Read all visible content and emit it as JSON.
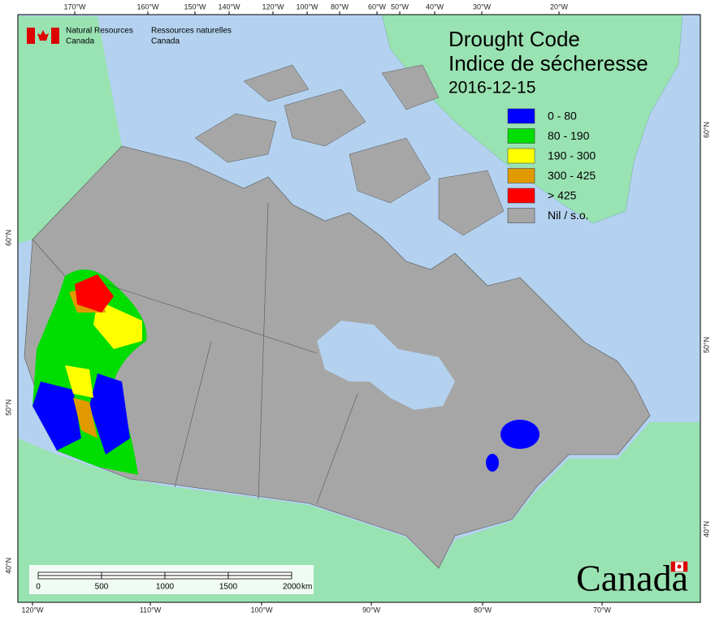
{
  "agency": {
    "en_line1": "Natural Resources",
    "en_line2": "Canada",
    "fr_line1": "Ressources naturelles",
    "fr_line2": "Canada"
  },
  "title": {
    "en": "Drought Code",
    "fr": "Indice de sécheresse",
    "date": "2016-12-15"
  },
  "legend": [
    {
      "label": "0 - 80",
      "color": "#0000ff"
    },
    {
      "label": "80 - 190",
      "color": "#00dd00"
    },
    {
      "label": "190 - 300",
      "color": "#ffff00"
    },
    {
      "label": "300 - 425",
      "color": "#e09a00"
    },
    {
      "label": "> 425",
      "color": "#ff0000"
    },
    {
      "label": "Nil / s.o.",
      "color": "#a6a6a6"
    }
  ],
  "graticule": {
    "top": [
      "170°W",
      "160°W",
      "150°W",
      "140°W",
      "120°W",
      "100°W",
      "80°W",
      "60°W",
      "50°W",
      "40°W",
      "30°W",
      "20°W"
    ],
    "bottom": [
      "120°W",
      "110°W",
      "100°W",
      "90°W",
      "80°W",
      "70°W"
    ],
    "left": [
      "60°N",
      "50°N",
      "40°N"
    ],
    "right": [
      "60°N",
      "50°N",
      "40°N"
    ]
  },
  "scale_bar": {
    "labels": [
      "0",
      "500",
      "1000",
      "1500",
      "2000"
    ],
    "unit": "km"
  },
  "wordmark": "Canada"
}
